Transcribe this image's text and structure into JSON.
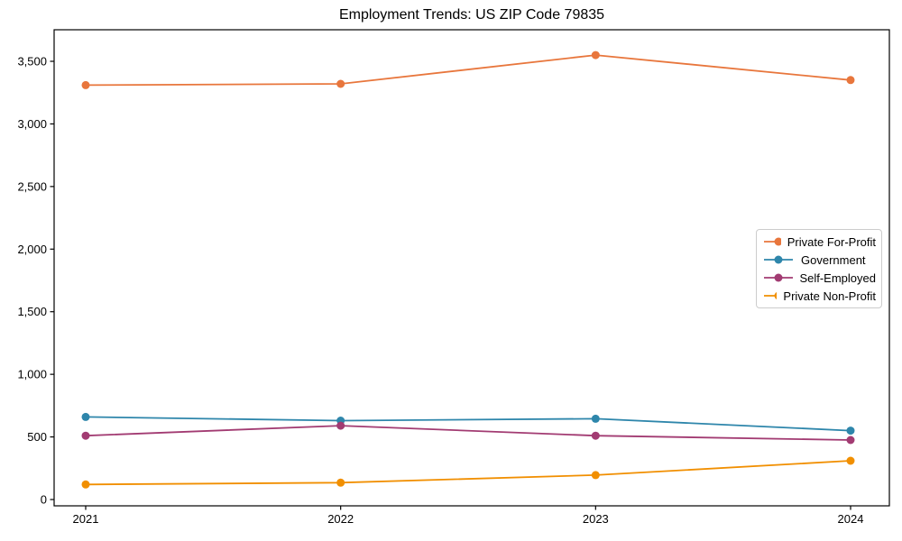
{
  "title": "Employment Trends: US ZIP Code 79835",
  "chart_data": {
    "type": "line",
    "title": "Employment Trends: US ZIP Code 79835",
    "xlabel": "",
    "ylabel": "",
    "x": [
      2021,
      2022,
      2023,
      2024
    ],
    "x_tick_labels": [
      "2021",
      "2022",
      "2023",
      "2024"
    ],
    "y_ticks": [
      0,
      500,
      1000,
      1500,
      2000,
      2500,
      3000,
      3500
    ],
    "y_tick_labels": [
      "0",
      "500",
      "1,000",
      "1,500",
      "2,000",
      "2,500",
      "3,000",
      "3,500"
    ],
    "ylim": [
      0,
      3750
    ],
    "grid": false,
    "legend_position": "center right",
    "marker": "circle",
    "series": [
      {
        "name": "Private For-Profit",
        "color": "#E8763C",
        "values": [
          3310,
          3320,
          3550,
          3350
        ]
      },
      {
        "name": "Government",
        "color": "#2E86AB",
        "values": [
          660,
          630,
          645,
          550
        ]
      },
      {
        "name": "Self-Employed",
        "color": "#A23B72",
        "values": [
          510,
          590,
          510,
          475
        ]
      },
      {
        "name": "Private Non-Profit",
        "color": "#F18F01",
        "values": [
          120,
          135,
          195,
          310
        ]
      }
    ],
    "axis_color": "#000000",
    "legend_border_color": "#cccccc"
  }
}
